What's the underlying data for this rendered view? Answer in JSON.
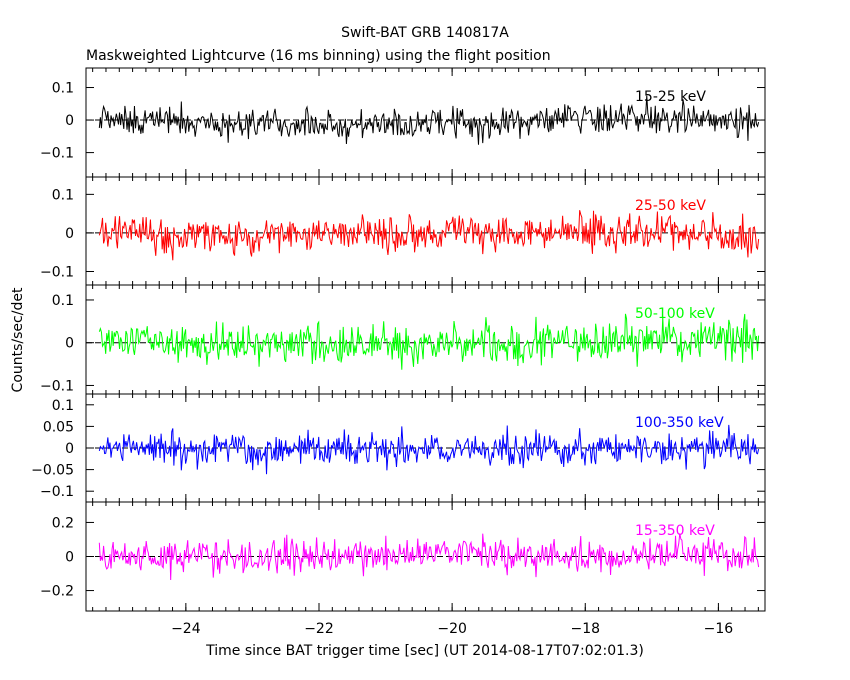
{
  "chart_data": {
    "type": "line",
    "title": "Swift-BAT GRB 140817A",
    "subtitle": "Maskweighted Lightcurve (16 ms binning) using the flight position",
    "xlabel": "Time since BAT trigger time [sec] (UT 2014-08-17T07:02:01.3)",
    "ylabel": "Counts/sec/det",
    "xlim": [
      -25.5,
      -15.3
    ],
    "x_ticks": [
      -24,
      -22,
      -20,
      -18,
      -16
    ],
    "x_tick_labels": [
      "−24",
      "−22",
      "−20",
      "−18",
      "−16"
    ],
    "bin_width_s": 0.016,
    "data_x_range": [
      -25.3,
      -15.4
    ],
    "grid": false,
    "panels": [
      {
        "name": "15-25 keV",
        "color": "#000000",
        "ylim": [
          -0.175,
          0.16
        ],
        "y_ticks": [
          0.1,
          0,
          -0.1
        ],
        "y_tick_labels": [
          "0.1",
          "0",
          "−0.1"
        ],
        "noise_sigma": 0.045,
        "peak_abs": 0.16
      },
      {
        "name": "25-50 keV",
        "color": "#ff0000",
        "ylim": [
          -0.135,
          0.145
        ],
        "y_ticks": [
          0.1,
          0,
          -0.1
        ],
        "y_tick_labels": [
          "0.1",
          "0",
          "−0.1"
        ],
        "noise_sigma": 0.042,
        "peak_abs": 0.14
      },
      {
        "name": "50-100 keV",
        "color": "#00ff00",
        "ylim": [
          -0.12,
          0.135
        ],
        "y_ticks": [
          0.1,
          0,
          -0.1
        ],
        "y_tick_labels": [
          "0.1",
          "0",
          "−0.1"
        ],
        "noise_sigma": 0.04,
        "peak_abs": 0.13
      },
      {
        "name": "100-350 keV",
        "color": "#0000ff",
        "ylim": [
          -0.125,
          0.125
        ],
        "y_ticks": [
          0.1,
          0.05,
          0,
          -0.05,
          -0.1
        ],
        "y_tick_labels": [
          "0.1",
          "0.05",
          "0",
          "−0.05",
          "−0.1"
        ],
        "noise_sigma": 0.035,
        "peak_abs": 0.12
      },
      {
        "name": "15-350 keV",
        "color": "#ff00ff",
        "ylim": [
          -0.32,
          0.32
        ],
        "y_ticks": [
          0.2,
          0,
          -0.2
        ],
        "y_tick_labels": [
          "0.2",
          "0",
          "−0.2"
        ],
        "noise_sigma": 0.09,
        "peak_abs": 0.3
      }
    ]
  }
}
